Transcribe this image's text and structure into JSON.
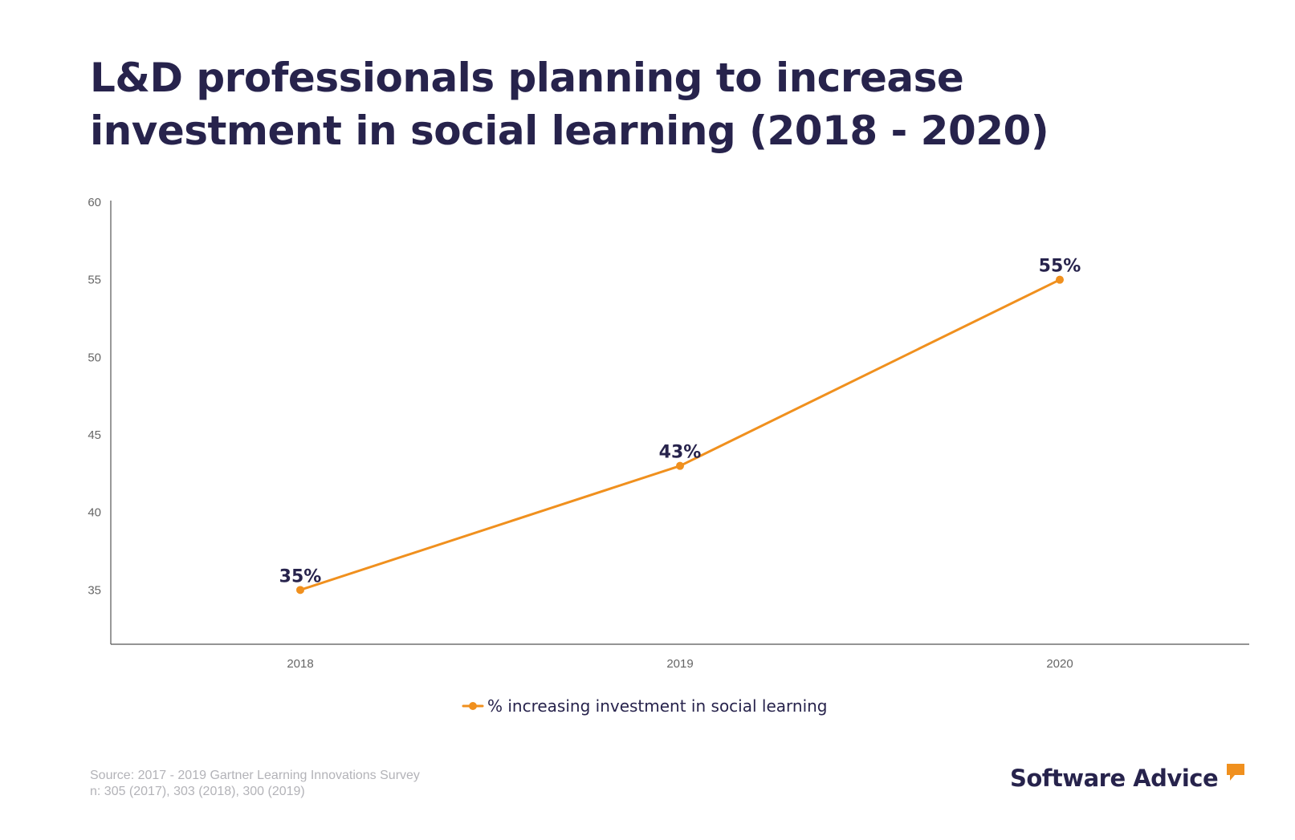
{
  "title_lines": [
    "L&D professionals planning to increase",
    "investment in social learning (2018 - 2020)"
  ],
  "chart_data": {
    "type": "line",
    "title": "L&D professionals planning to increase investment in social learning (2018 - 2020)",
    "xlabel": "",
    "ylabel": "",
    "categories": [
      "2018",
      "2019",
      "2020"
    ],
    "series": [
      {
        "name": "% increasing investment in social learning",
        "values": [
          35,
          43,
          55
        ],
        "data_labels": [
          "35%",
          "43%",
          "55%"
        ],
        "color": "#f0901e"
      }
    ],
    "ylim": [
      31.5,
      60
    ],
    "y_ticks": [
      35,
      40,
      45,
      50,
      55,
      60
    ],
    "grid": false,
    "legend_position": "bottom"
  },
  "source": {
    "line1": "Source: 2017 - 2019 Gartner Learning Innovations Survey",
    "line2": "n: 305 (2017), 303 (2018), 300 (2019)"
  },
  "brand": {
    "name": "Software Advice",
    "accent_color": "#f0901e",
    "text_color": "#27234c"
  }
}
